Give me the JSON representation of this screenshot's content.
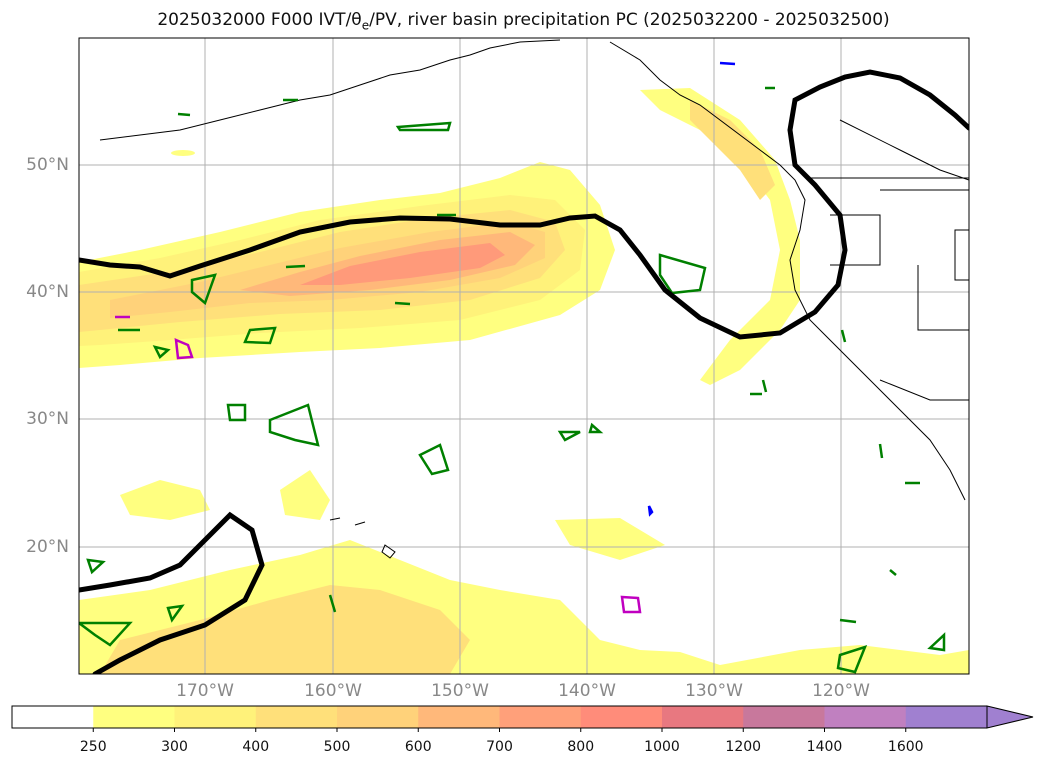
{
  "title": {
    "prefix": "2025032000 F000 IVT/",
    "theta": "θ",
    "theta_sub": "e",
    "suffix": "/PV, river basin precipitation PC (2025032200 - 2025032500)"
  },
  "lat_labels": [
    "50°N",
    "40°N",
    "30°N",
    "20°N"
  ],
  "lon_labels": [
    "170°W",
    "160°W",
    "150°W",
    "140°W",
    "130°W",
    "120°W"
  ],
  "colorbar": {
    "ticks": [
      "250",
      "300",
      "400",
      "500",
      "600",
      "700",
      "800",
      "1000",
      "1200",
      "1400",
      "1600"
    ],
    "colors": [
      "#ffffff",
      "#ffff80",
      "#fff27a",
      "#ffe07a",
      "#ffd27a",
      "#ffb87a",
      "#ffa07a",
      "#ff8c7a",
      "#e87880",
      "#c8789c",
      "#c080c0",
      "#a080d0"
    ],
    "extend": "max"
  },
  "colors": {
    "theta_contour": "#000000",
    "pv_contour_green": "#008000",
    "magenta_contour": "#c000c0",
    "blue_contour": "#0000ff",
    "coastline": "#000000",
    "grid": "#b0b0b0"
  }
}
